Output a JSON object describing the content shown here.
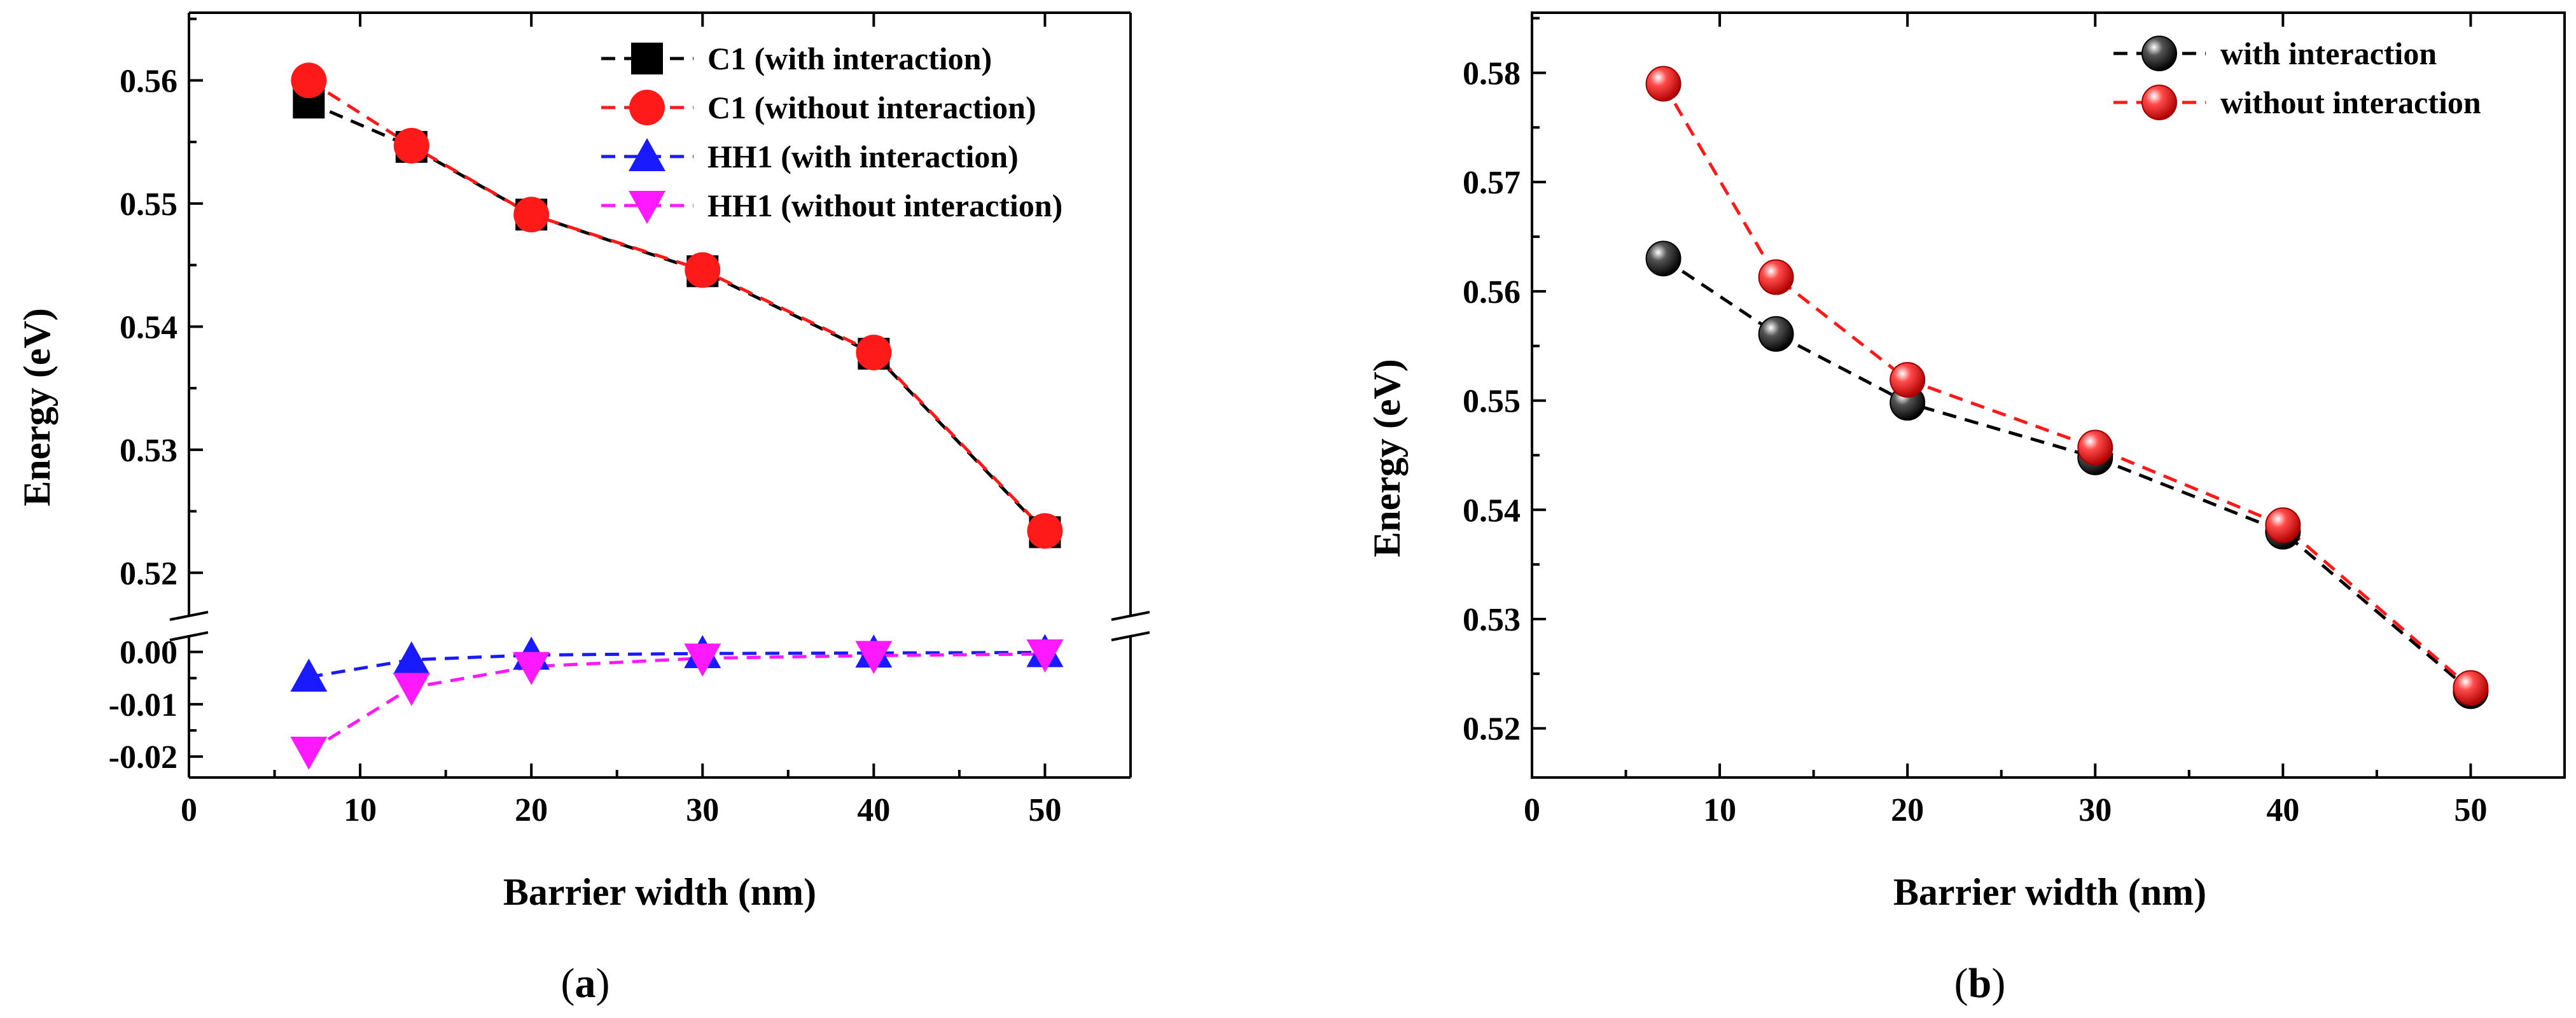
{
  "chart_data": [
    {
      "type": "line",
      "panel_caption_prefix": "(",
      "panel_letter": "a",
      "panel_caption_suffix": ")",
      "xlabel": "Barrier width (nm)",
      "ylabel": "Energy (eV)",
      "xlim": [
        0,
        55
      ],
      "x_ticks": [
        0,
        10,
        20,
        30,
        40,
        50
      ],
      "y_axis_break": true,
      "upper_ylim": [
        0.5165,
        0.5655
      ],
      "upper_ticks": [
        0.52,
        0.53,
        0.54,
        0.55,
        0.56
      ],
      "lower_ylim": [
        -0.024,
        0.003
      ],
      "lower_ticks": [
        0.0,
        -0.01,
        -0.02
      ],
      "grid": false,
      "legend_position": "top-right",
      "x": [
        7,
        13,
        20,
        30,
        40,
        50
      ],
      "series": [
        {
          "name": "C1 (with interaction)",
          "values": [
            0.5582,
            0.5546,
            0.5491,
            0.5445,
            0.5378,
            0.5233
          ],
          "color": "#000000",
          "marker": "square",
          "segment": "upper"
        },
        {
          "name": "C1 (without interaction)",
          "values": [
            0.56,
            0.5547,
            0.5491,
            0.5446,
            0.5379,
            0.5234
          ],
          "color": "#ff1a1a",
          "marker": "circle",
          "segment": "upper"
        },
        {
          "name": "HH1 (with interaction)",
          "values": [
            -0.0048,
            -0.0015,
            -0.0006,
            -0.0003,
            -0.0002,
            -0.0001
          ],
          "color": "#1a1aff",
          "marker": "triangle-up",
          "segment": "lower"
        },
        {
          "name": "HH1 (without interaction)",
          "values": [
            -0.019,
            -0.0068,
            -0.0028,
            -0.0012,
            -0.0007,
            -0.0004
          ],
          "color": "#ff19ff",
          "marker": "triangle-down",
          "segment": "lower"
        }
      ]
    },
    {
      "type": "line",
      "panel_caption_prefix": "(",
      "panel_letter": "b",
      "panel_caption_suffix": ")",
      "xlabel": "Barrier width (nm)",
      "ylabel": "Energy (eV)",
      "xlim": [
        0,
        55
      ],
      "x_ticks": [
        0,
        10,
        20,
        30,
        40,
        50
      ],
      "ylim": [
        0.5155,
        0.5855
      ],
      "y_ticks": [
        0.52,
        0.53,
        0.54,
        0.55,
        0.56,
        0.57,
        0.58
      ],
      "grid": false,
      "legend_position": "top-right",
      "x": [
        7,
        13,
        20,
        30,
        40,
        50
      ],
      "series": [
        {
          "name": "with interaction",
          "values": [
            0.563,
            0.5561,
            0.5498,
            0.5448,
            0.538,
            0.5234
          ],
          "color": "#000000",
          "marker": "sphere"
        },
        {
          "name": "without interaction",
          "values": [
            0.579,
            0.5613,
            0.5519,
            0.5457,
            0.5386,
            0.5237
          ],
          "color": "#ff1a1a",
          "marker": "sphere"
        }
      ]
    }
  ]
}
